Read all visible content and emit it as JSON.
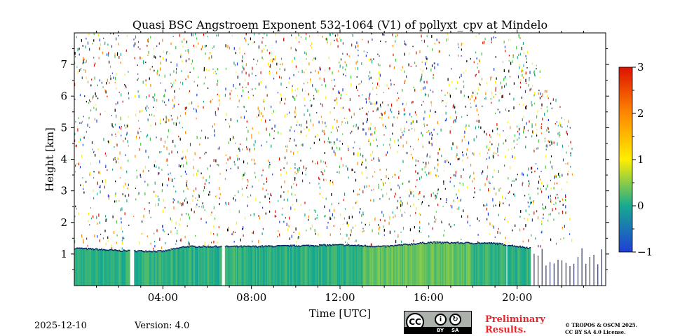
{
  "chart_data": {
    "type": "heatmap",
    "title": "Quasi BSC Angstroem Exponent 532-1064 (V1) of pollyxt_cpv at Mindelo",
    "xlabel": "Time [UTC]",
    "ylabel": "Height [km]",
    "xlim": [
      0,
      24
    ],
    "ylim": [
      0,
      8
    ],
    "x_ticks": [
      4,
      8,
      12,
      16,
      20
    ],
    "x_tick_labels": [
      "04:00",
      "08:00",
      "12:00",
      "16:00",
      "20:00"
    ],
    "y_ticks": [
      1,
      2,
      3,
      4,
      5,
      6,
      7
    ],
    "y_tick_labels": [
      "1",
      "2",
      "3",
      "4",
      "5",
      "6",
      "7"
    ],
    "colorbar": {
      "range": [
        -1,
        3
      ],
      "ticks": [
        -1,
        0,
        1,
        2,
        3
      ],
      "tick_labels": [
        "−1",
        "0",
        "1",
        "2",
        "3"
      ],
      "colormap": "jet"
    },
    "data_gaps_hours": [
      [
        2.45,
        2.65
      ],
      [
        6.6,
        6.75
      ],
      [
        19.5,
        19.55
      ]
    ],
    "boundary_layer_top_km": [
      {
        "time": 0,
        "height": 1.2
      },
      {
        "time": 2,
        "height": 1.12
      },
      {
        "time": 4,
        "height": 1.1
      },
      {
        "time": 5,
        "height": 1.25
      },
      {
        "time": 8,
        "height": 1.25
      },
      {
        "time": 12,
        "height": 1.3
      },
      {
        "time": 14,
        "height": 1.25
      },
      {
        "time": 16,
        "height": 1.38
      },
      {
        "time": 19,
        "height": 1.35
      },
      {
        "time": 20.6,
        "height": 1.2
      }
    ],
    "noise_band_km": [
      1.3,
      8
    ]
  },
  "footer": {
    "date": "2025-12-10",
    "version": "Version: 4.0",
    "license_badge": {
      "cc": "CC",
      "by": "BY",
      "sa": "SA"
    },
    "preliminary_line1": "Preliminary",
    "preliminary_line2": "Results.",
    "copyright_line1": "© TROPOS & OSCM 2025.",
    "copyright_line2": "CC BY SA 4.0 License."
  }
}
